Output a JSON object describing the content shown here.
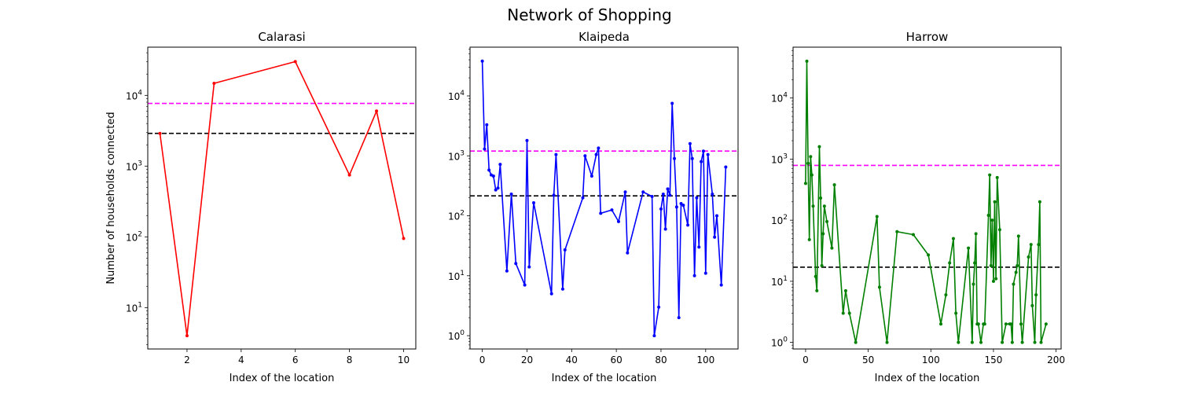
{
  "figure": {
    "title": "Network of Shopping"
  },
  "colors": {
    "mean_line": "#ff00ff",
    "median_line": "#000000"
  },
  "chart_data": [
    {
      "type": "line",
      "title": "Calarasi",
      "xlabel": "Index of the location",
      "ylabel": "Number of households connected",
      "yscale": "log",
      "xlim": [
        0.55,
        10.45
      ],
      "ylim": [
        2.6,
        48000
      ],
      "xticks": [
        2,
        4,
        6,
        8,
        10
      ],
      "yticks": [
        10,
        100,
        1000,
        10000
      ],
      "color": "#ff0000",
      "x": [
        1,
        2,
        3,
        6,
        8,
        9,
        10
      ],
      "y": [
        2900,
        4,
        14800,
        30000,
        750,
        6000,
        95
      ],
      "hlines": [
        {
          "y": 7700,
          "color": "#ff00ff"
        },
        {
          "y": 2900,
          "color": "#000000"
        }
      ]
    },
    {
      "type": "line",
      "title": "Klaipeda",
      "xlabel": "Index of the location",
      "ylabel": "",
      "yscale": "log",
      "xlim": [
        -5.5,
        114.5
      ],
      "ylim": [
        0.6,
        65000
      ],
      "xticks": [
        0,
        20,
        40,
        60,
        80,
        100
      ],
      "yticks": [
        1,
        10,
        100,
        1000,
        10000
      ],
      "color": "#0000ff",
      "x": [
        0,
        1,
        2,
        3,
        4,
        5,
        6,
        7,
        8,
        11,
        13,
        15,
        19,
        20,
        21,
        23,
        31,
        32,
        33,
        36,
        37,
        45,
        46,
        49,
        51,
        52,
        53,
        58,
        61,
        64,
        65,
        72,
        76,
        77,
        79,
        80,
        81,
        82,
        83,
        84,
        85,
        86,
        87,
        88,
        89,
        90,
        92,
        93,
        94,
        95,
        96,
        97,
        98,
        99,
        100,
        101,
        103,
        104,
        105,
        107,
        109
      ],
      "y": [
        38000,
        1300,
        3300,
        580,
        480,
        460,
        270,
        290,
        720,
        12,
        230,
        16,
        7,
        1800,
        14,
        165,
        5,
        220,
        1050,
        6,
        27,
        200,
        1000,
        460,
        1050,
        1350,
        110,
        125,
        80,
        250,
        24,
        250,
        210,
        1,
        3,
        130,
        230,
        60,
        280,
        220,
        7500,
        900,
        140,
        2,
        160,
        150,
        70,
        1600,
        900,
        10,
        200,
        30,
        800,
        1200,
        11,
        1050,
        230,
        44,
        100,
        7,
        650
      ],
      "hlines": [
        {
          "y": 1200,
          "color": "#ff00ff"
        },
        {
          "y": 215,
          "color": "#000000"
        }
      ]
    },
    {
      "type": "line",
      "title": "Harrow",
      "xlabel": "Index of the location",
      "ylabel": "",
      "yscale": "log",
      "xlim": [
        -10,
        204
      ],
      "ylim": [
        0.78,
        68000
      ],
      "xticks": [
        0,
        50,
        100,
        150,
        200
      ],
      "yticks": [
        1,
        10,
        100,
        1000,
        10000
      ],
      "color": "#008000",
      "x": [
        0,
        1,
        2,
        3,
        4,
        5,
        6,
        8,
        9,
        11,
        12,
        13,
        14,
        15,
        17,
        21,
        23,
        30,
        32,
        35,
        40,
        57,
        59,
        65,
        73,
        86,
        98,
        108,
        112,
        115,
        118,
        120,
        122,
        130,
        133,
        134,
        135,
        136,
        137,
        138,
        140,
        142,
        143,
        146,
        147,
        148,
        149,
        150,
        151,
        152,
        153,
        155,
        157,
        160,
        163,
        164,
        165,
        166,
        168,
        169,
        170,
        172,
        173,
        178,
        180,
        181,
        183,
        184,
        186,
        187,
        188,
        192
      ],
      "y": [
        400,
        40000,
        850,
        48,
        1100,
        550,
        170,
        12,
        7,
        1600,
        230,
        18,
        60,
        170,
        95,
        35,
        380,
        3,
        7,
        3,
        1,
        115,
        8,
        1,
        65,
        58,
        27,
        2,
        6,
        20,
        50,
        3,
        1,
        35,
        1,
        9,
        20,
        60,
        2,
        2,
        1,
        2,
        2,
        120,
        550,
        18,
        100,
        10,
        200,
        11,
        500,
        70,
        1,
        2,
        2,
        2,
        1,
        9,
        14,
        18,
        55,
        2,
        1,
        25,
        40,
        4,
        1,
        6,
        40,
        200,
        1,
        2
      ],
      "hlines": [
        {
          "y": 790,
          "color": "#ff00ff"
        },
        {
          "y": 17,
          "color": "#000000"
        }
      ]
    }
  ]
}
